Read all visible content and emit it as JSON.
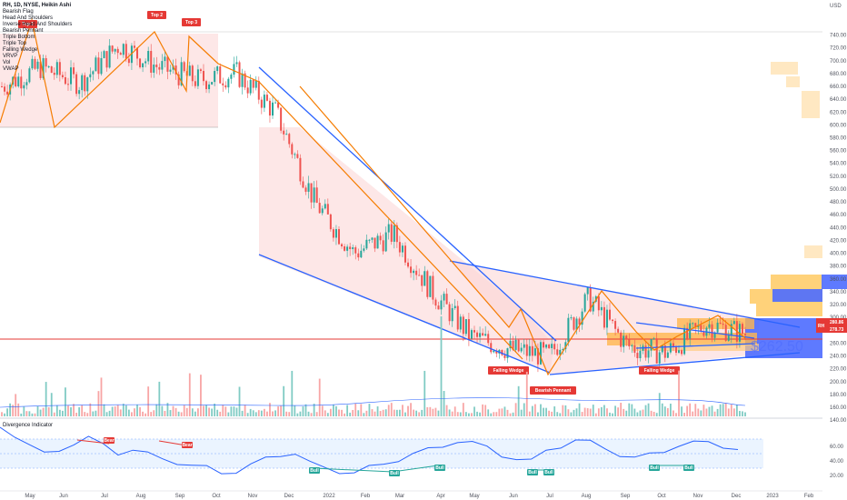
{
  "header": {
    "title": "RH, 1D, NYSE, Heikin Ashi",
    "indicators": [
      "Bearish Flag",
      "Head And Shoulders",
      "Inverse Head And Shoulders",
      "Bearish Pennant",
      "Triple Bottom",
      "Triple Top",
      "Falling Wedge",
      "VRVP",
      "Vol",
      "VWAP"
    ]
  },
  "currency": "USD",
  "price_axis_ticks": [
    740,
    720,
    700,
    680,
    660,
    640,
    620,
    600,
    580,
    560,
    540,
    520,
    500,
    480,
    460,
    440,
    420,
    400,
    380,
    360,
    340,
    320,
    300,
    280,
    260,
    240,
    220,
    200,
    180,
    160,
    140
  ],
  "osc_axis_ticks": [
    60,
    40,
    20
  ],
  "x_labels": [
    "May",
    "Jun",
    "Jul",
    "Aug",
    "Sep",
    "Oct",
    "Nov",
    "Dec",
    "2022",
    "Feb",
    "Mar",
    "Apr",
    "May",
    "Jun",
    "Jul",
    "Aug",
    "Sep",
    "Oct",
    "Nov",
    "Dec",
    "2023",
    "Feb"
  ],
  "price_tags": {
    "upper": "280.86",
    "lower": "278.73",
    "symbol": "RH"
  },
  "big_price_label": "$262.50",
  "oscillator_name": "Divergence Indicator",
  "colors": {
    "up": "#26a69a",
    "down": "#ef5350",
    "blue": "#2962ff",
    "orange": "#f57c00"
  },
  "pattern_tags": [
    "Top 1",
    "Top 2",
    "Top 3",
    "Falling Wedge",
    "Bearish Pennant",
    "Falling Wedge"
  ],
  "osc_tags": [
    "Bear",
    "Bear",
    "Bull",
    "Bull",
    "Bull",
    "Bull",
    "Bull",
    "Bull",
    "Bull"
  ],
  "chart_data": {
    "type": "line",
    "title": "RH, 1D, NYSE, Heikin Ashi",
    "xlabel": "",
    "ylabel": "USD",
    "ylim": [
      140,
      750
    ],
    "x": [
      "May 2021",
      "Jun",
      "Jul",
      "Aug",
      "Sep",
      "Oct",
      "Nov",
      "Dec",
      "2022",
      "Feb",
      "Mar",
      "Apr",
      "May",
      "Jun",
      "Jul",
      "Aug",
      "Sep",
      "Oct",
      "Nov",
      "Dec 2022"
    ],
    "series": [
      {
        "values": [
          660,
          690,
          665,
          725,
          690,
          670,
          680,
          620,
          480,
          400,
          430,
          340,
          270,
          250,
          240,
          330,
          255,
          245,
          290,
          275
        ]
      }
    ],
    "horizontal_line": 262.5,
    "oscillator": {
      "name": "Divergence Indicator",
      "ylim": [
        15,
        80
      ],
      "bands": [
        40,
        60,
        70
      ]
    }
  }
}
